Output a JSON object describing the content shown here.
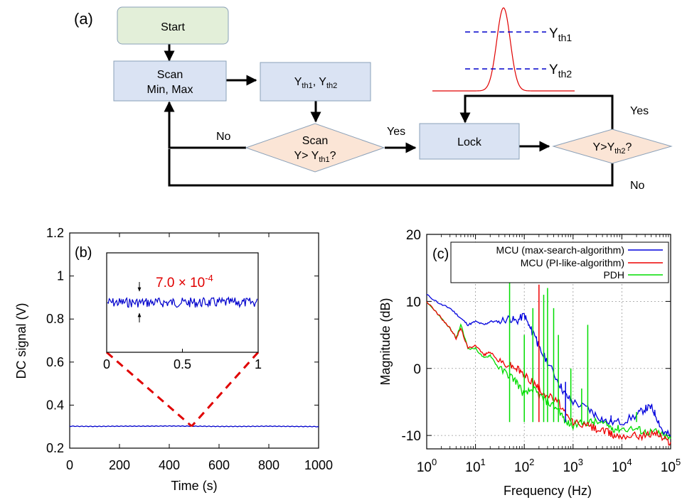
{
  "panel_a": {
    "label": "(a)",
    "start": "Start",
    "scan_line1": "Scan",
    "scan_line2": "Min, Max",
    "thresholds": {
      "y": "Y",
      "sub1": "th1",
      "comma": ", ",
      "sub2": "th2"
    },
    "decision1": {
      "line1": "Scan",
      "line2_prefix": "Y> Y",
      "line2_sub": "th1",
      "line2_suffix": "?"
    },
    "lock": "Lock",
    "decision2": {
      "prefix": "Y>Y",
      "sub": "th2",
      "suffix": "?"
    },
    "label_no_left": "No",
    "label_yes_mid": "Yes",
    "label_yes_right": "Yes",
    "label_no_right": "No",
    "peak_legend": {
      "y": "Y",
      "th1": "th1",
      "th2": "th2"
    },
    "colors": {
      "start_fill": "#e3efd9",
      "box_fill": "#dae3f3",
      "diamond_fill": "#fbe5d6",
      "peak": "#e00000",
      "dash": "#0000cc"
    }
  },
  "chart_data": [
    {
      "type": "line",
      "panel_label": "(b)",
      "xlabel": "Time (s)",
      "ylabel": "DC signal (V)",
      "xlim": [
        0,
        1000
      ],
      "ylim": [
        0.2,
        1.2
      ],
      "x_ticks": [
        "0",
        "200",
        "400",
        "600",
        "800",
        "1000"
      ],
      "y_ticks": [
        "0.2",
        "0.4",
        "0.6",
        "0.8",
        "1",
        "1.2"
      ],
      "series": [
        {
          "color": "#0000cc",
          "x": [
            0,
            100,
            200,
            300,
            400,
            500,
            600,
            700,
            800,
            900,
            1000
          ],
          "values": [
            0.302,
            0.301,
            0.302,
            0.302,
            0.303,
            0.302,
            0.301,
            0.301,
            0.302,
            0.301,
            0.3
          ]
        }
      ],
      "inset": {
        "xlim": [
          0,
          1
        ],
        "x_ticks": [
          "0",
          "0.5",
          "1"
        ],
        "annotation_base": "7.0 × 10",
        "annotation_exp": "-4",
        "annotation_color": "#e00000",
        "mean": 0.302,
        "zoom_point_x": 490
      }
    },
    {
      "type": "line",
      "panel_label": "(c)",
      "xlabel": "Frequency (Hz)",
      "ylabel": "Magnitude (dB)",
      "xscale": "log",
      "xlim": [
        1,
        100000
      ],
      "ylim": [
        -12,
        20
      ],
      "grid": true,
      "x_ticks": [
        {
          "base": "10",
          "exp": "0"
        },
        {
          "base": "10",
          "exp": "1"
        },
        {
          "base": "10",
          "exp": "2"
        },
        {
          "base": "10",
          "exp": "3"
        },
        {
          "base": "10",
          "exp": "4"
        },
        {
          "base": "10",
          "exp": "5"
        }
      ],
      "y_ticks": [
        "-10",
        "0",
        "10",
        "20"
      ],
      "legend_position": "top-right",
      "series": [
        {
          "name": "MCU (max-search-algorithm)",
          "color": "#0000dd",
          "x": [
            1,
            2,
            3,
            5,
            7,
            10,
            15,
            20,
            30,
            50,
            70,
            100,
            130,
            170,
            200,
            300,
            500,
            700,
            1000,
            2000,
            3000,
            5000,
            10000,
            20000,
            30000,
            40000,
            50000,
            70000,
            100000
          ],
          "values": [
            11,
            9.5,
            9,
            7.5,
            6.5,
            7,
            6.5,
            7,
            7,
            7.5,
            7,
            8,
            6,
            5,
            3,
            1,
            -2,
            -4,
            -5,
            -6,
            -7,
            -8,
            -8,
            -7,
            -6,
            -5.8,
            -7,
            -9.5,
            -10
          ]
        },
        {
          "name": "MCU (PI-like-algorithm)",
          "color": "#ee0000",
          "x": [
            1,
            2,
            3,
            4,
            5,
            7,
            10,
            15,
            20,
            30,
            50,
            70,
            100,
            150,
            200,
            300,
            500,
            700,
            1000,
            2000,
            3000,
            5000,
            7000,
            10000,
            20000,
            30000,
            50000,
            70000,
            100000
          ],
          "values": [
            10,
            7.5,
            6,
            4.5,
            6,
            3,
            3.5,
            2,
            2.5,
            1,
            0.5,
            0,
            -1,
            -2,
            -3,
            -4,
            -5,
            -7,
            -8,
            -8.5,
            -9,
            -9.5,
            -10,
            -10,
            -10,
            -10,
            -9.5,
            -10.5,
            -11
          ]
        },
        {
          "name": "PDH",
          "color": "#00dd00",
          "x": [
            1,
            2,
            3,
            4,
            5,
            7,
            10,
            15,
            20,
            30,
            50,
            70,
            100,
            150,
            200,
            300,
            500,
            700,
            1000,
            2000,
            3000,
            5000,
            7000,
            10000,
            20000,
            30000,
            50000,
            70000,
            100000
          ],
          "values": [
            10,
            7.5,
            6,
            4.5,
            6.5,
            3,
            3,
            1.5,
            2,
            0,
            -1,
            -2,
            -4,
            -3,
            -4,
            -5,
            -6,
            -8,
            -8.5,
            -8,
            -8,
            -8.5,
            -9,
            -9,
            -9,
            -9.5,
            -9.5,
            -10,
            -10.5
          ]
        }
      ],
      "spikes": [
        {
          "x": 50,
          "top": 16,
          "color": "#00dd00"
        },
        {
          "x": 100,
          "top": 5,
          "color": "#00dd00"
        },
        {
          "x": 150,
          "top": 9,
          "color": "#00dd00"
        },
        {
          "x": 200,
          "top": 12.5,
          "color": "#ee0000"
        },
        {
          "x": 250,
          "top": 11,
          "color": "#00dd00"
        },
        {
          "x": 300,
          "top": 12,
          "color": "#00dd00"
        },
        {
          "x": 400,
          "top": 9,
          "color": "#00dd00"
        },
        {
          "x": 500,
          "top": 5,
          "color": "#00dd00"
        },
        {
          "x": 700,
          "top": -2,
          "color": "#0000dd"
        },
        {
          "x": 900,
          "top": 0,
          "color": "#00dd00"
        },
        {
          "x": 1500,
          "top": -3,
          "color": "#00dd00"
        },
        {
          "x": 2000,
          "top": 6.5,
          "color": "#00dd00"
        },
        {
          "x": 6000,
          "top": -7,
          "color": "#0000dd"
        },
        {
          "x": 20000,
          "top": -6.5,
          "color": "#00dd00"
        }
      ]
    }
  ]
}
